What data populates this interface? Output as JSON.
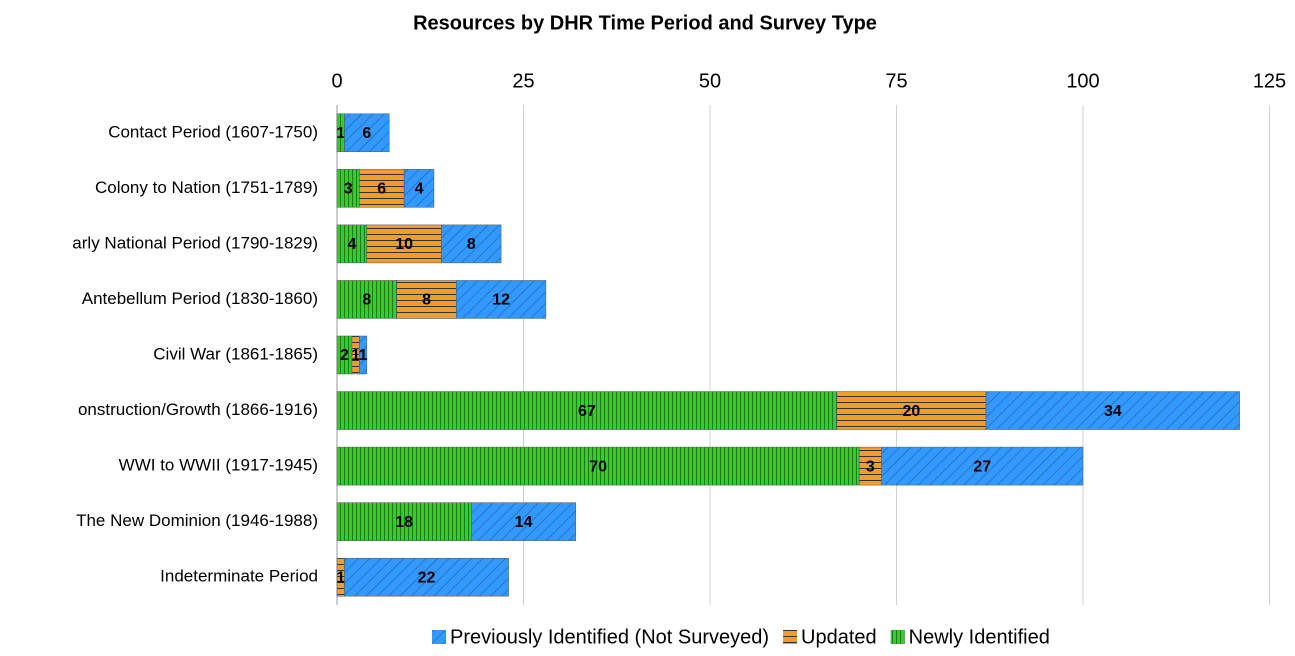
{
  "chart_data": {
    "type": "stacked-bar-horizontal",
    "title": "Resources by DHR Time Period and Survey Type",
    "categories": [
      "Contact Period (1607-1750)",
      "Colony to Nation (1751-1789)",
      "arly National Period (1790-1829)",
      "Antebellum Period (1830-1860)",
      "Civil War (1861-1865)",
      "onstruction/Growth (1866-1916)",
      "WWI to WWII (1917-1945)",
      "The New Dominion (1946-1988)",
      "Indeterminate Period"
    ],
    "series": [
      {
        "name": "Previously Identified (Not Surveyed)",
        "color": "#3399ff",
        "values": [
          6,
          4,
          8,
          12,
          1,
          34,
          27,
          14,
          22
        ]
      },
      {
        "name": "Updated",
        "color": "#f39c2b",
        "values": [
          null,
          6,
          10,
          8,
          1,
          20,
          3,
          null,
          1
        ]
      },
      {
        "name": "Newly Identified",
        "color": "#33cc33",
        "values": [
          1,
          3,
          4,
          8,
          2,
          67,
          70,
          18,
          null
        ]
      }
    ],
    "xlim": [
      0,
      125
    ],
    "xticks": [
      0,
      25,
      50,
      75,
      100,
      125
    ],
    "grid": true,
    "legend": "bottom"
  }
}
